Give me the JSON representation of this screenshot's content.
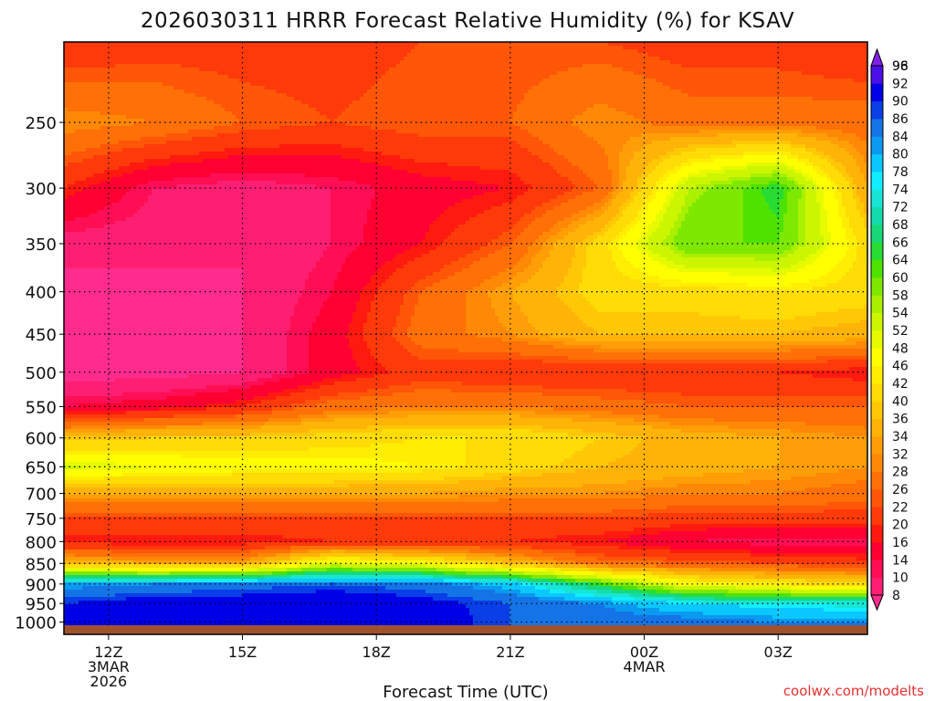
{
  "chart_data": {
    "type": "heatmap",
    "title": "2026030311 HRRR Forecast Relative Humidity (%) for KSAV",
    "xlabel": "Forecast Time (UTC)",
    "ylabel": "",
    "credit": "coolwx.com/modelts",
    "x_ticks": [
      {
        "hour": 12,
        "line1": "12Z",
        "line2": "3MAR",
        "line3": "2026"
      },
      {
        "hour": 15,
        "line1": "15Z",
        "line2": "",
        "line3": ""
      },
      {
        "hour": 18,
        "line1": "18Z",
        "line2": "",
        "line3": ""
      },
      {
        "hour": 21,
        "line1": "21Z",
        "line2": "",
        "line3": ""
      },
      {
        "hour": 24,
        "line1": "00Z",
        "line2": "4MAR",
        "line3": ""
      },
      {
        "hour": 27,
        "line1": "03Z",
        "line2": "",
        "line3": ""
      }
    ],
    "xlim_hours": [
      11,
      29
    ],
    "y_axis": "pressure (hPa), logarithmic",
    "y_ticks": [
      250,
      300,
      350,
      400,
      450,
      500,
      550,
      600,
      650,
      700,
      750,
      800,
      850,
      900,
      950,
      1000
    ],
    "ylim": [
      200,
      1035
    ],
    "grid": true,
    "colorbar_levels": [
      8,
      10,
      14,
      16,
      20,
      22,
      26,
      28,
      32,
      34,
      36,
      40,
      42,
      46,
      48,
      52,
      54,
      58,
      60,
      64,
      66,
      68,
      72,
      74,
      78,
      80,
      84,
      86,
      90,
      92,
      96,
      98
    ],
    "colorbar_colors": [
      "#ff2c8e",
      "#ff1f72",
      "#ff0e55",
      "#ff0033",
      "#ff1a0f",
      "#ff3a0a",
      "#ff5608",
      "#ff7006",
      "#ff8806",
      "#ff9e07",
      "#ffb307",
      "#ffc806",
      "#ffdc05",
      "#ffee04",
      "#ffff00",
      "#e6fb00",
      "#ccf600",
      "#aaf000",
      "#7ee800",
      "#4ee200",
      "#28dc33",
      "#18d977",
      "#15dcad",
      "#18e5d6",
      "#12eeff",
      "#0ac8ff",
      "#0a9af0",
      "#1474e6",
      "#0a3ee6",
      "#0000e6",
      "#4b10e6",
      "#8020e8"
    ],
    "colorbar_position": "right",
    "rh_columns": [
      {
        "hour": 11.0,
        "p": [
          200,
          250,
          300,
          350,
          400,
          450,
          500,
          550,
          600,
          650,
          700,
          750,
          800,
          850,
          900,
          950,
          1000,
          1035
        ],
        "rh": [
          22,
          34,
          22,
          12,
          8,
          8,
          8,
          16,
          40,
          55,
          36,
          26,
          20,
          40,
          84,
          92,
          95,
          95
        ]
      },
      {
        "hour": 13.0,
        "p": [
          200,
          250,
          300,
          350,
          400,
          450,
          500,
          550,
          600,
          650,
          700,
          750,
          800,
          850,
          900,
          950,
          1000,
          1035
        ],
        "rh": [
          24,
          32,
          14,
          12,
          8,
          8,
          8,
          18,
          42,
          52,
          36,
          26,
          20,
          36,
          86,
          95,
          95,
          95
        ]
      },
      {
        "hour": 15.0,
        "p": [
          200,
          250,
          300,
          350,
          400,
          450,
          500,
          550,
          600,
          650,
          700,
          750,
          800,
          850,
          900,
          950,
          1000,
          1035
        ],
        "rh": [
          24,
          28,
          12,
          10,
          10,
          10,
          10,
          22,
          42,
          50,
          36,
          26,
          20,
          36,
          88,
          95,
          95,
          95
        ]
      },
      {
        "hour": 17.0,
        "p": [
          200,
          250,
          300,
          350,
          400,
          450,
          500,
          550,
          600,
          650,
          700,
          750,
          800,
          850,
          900,
          950,
          1000,
          1035
        ],
        "rh": [
          24,
          26,
          14,
          14,
          16,
          18,
          18,
          30,
          44,
          50,
          36,
          26,
          22,
          54,
          90,
          96,
          95,
          95
        ]
      },
      {
        "hour": 19.0,
        "p": [
          200,
          250,
          300,
          350,
          400,
          450,
          500,
          550,
          600,
          650,
          700,
          750,
          800,
          850,
          900,
          950,
          1000,
          1035
        ],
        "rh": [
          26,
          28,
          18,
          20,
          28,
          30,
          24,
          32,
          46,
          48,
          36,
          26,
          22,
          50,
          88,
          94,
          95,
          95
        ]
      },
      {
        "hour": 21.0,
        "p": [
          200,
          250,
          300,
          350,
          400,
          450,
          500,
          550,
          600,
          650,
          700,
          750,
          800,
          850,
          900,
          950,
          1000,
          1035
        ],
        "rh": [
          26,
          28,
          20,
          28,
          36,
          34,
          22,
          32,
          46,
          44,
          34,
          26,
          22,
          40,
          82,
          90,
          90,
          90
        ]
      },
      {
        "hour": 23.0,
        "p": [
          200,
          250,
          300,
          350,
          400,
          450,
          500,
          550,
          600,
          650,
          700,
          750,
          800,
          850,
          900,
          950,
          1000,
          1035
        ],
        "rh": [
          26,
          34,
          28,
          44,
          44,
          40,
          22,
          30,
          42,
          40,
          34,
          26,
          20,
          30,
          66,
          86,
          88,
          88
        ]
      },
      {
        "hour": 25.0,
        "p": [
          200,
          250,
          300,
          350,
          400,
          450,
          500,
          550,
          600,
          650,
          700,
          750,
          800,
          850,
          900,
          950,
          1000,
          1035
        ],
        "rh": [
          24,
          30,
          58,
          64,
          44,
          40,
          22,
          28,
          38,
          38,
          32,
          24,
          16,
          28,
          50,
          80,
          88,
          88
        ]
      },
      {
        "hour": 27.0,
        "p": [
          200,
          250,
          300,
          350,
          400,
          450,
          500,
          550,
          600,
          650,
          700,
          750,
          800,
          850,
          900,
          950,
          1000,
          1035
        ],
        "rh": [
          24,
          30,
          68,
          64,
          46,
          40,
          22,
          28,
          36,
          36,
          32,
          24,
          14,
          26,
          46,
          78,
          86,
          86
        ]
      },
      {
        "hour": 29.0,
        "p": [
          200,
          250,
          300,
          350,
          400,
          450,
          500,
          550,
          600,
          650,
          700,
          750,
          800,
          850,
          900,
          950,
          1000,
          1035
        ],
        "rh": [
          22,
          30,
          36,
          44,
          44,
          38,
          20,
          28,
          34,
          34,
          30,
          24,
          14,
          24,
          44,
          76,
          86,
          86
        ]
      }
    ],
    "colors": {
      "ground": "#a0522d",
      "grid": "#000000",
      "credit": "#e83030",
      "frame": "#000000"
    }
  }
}
